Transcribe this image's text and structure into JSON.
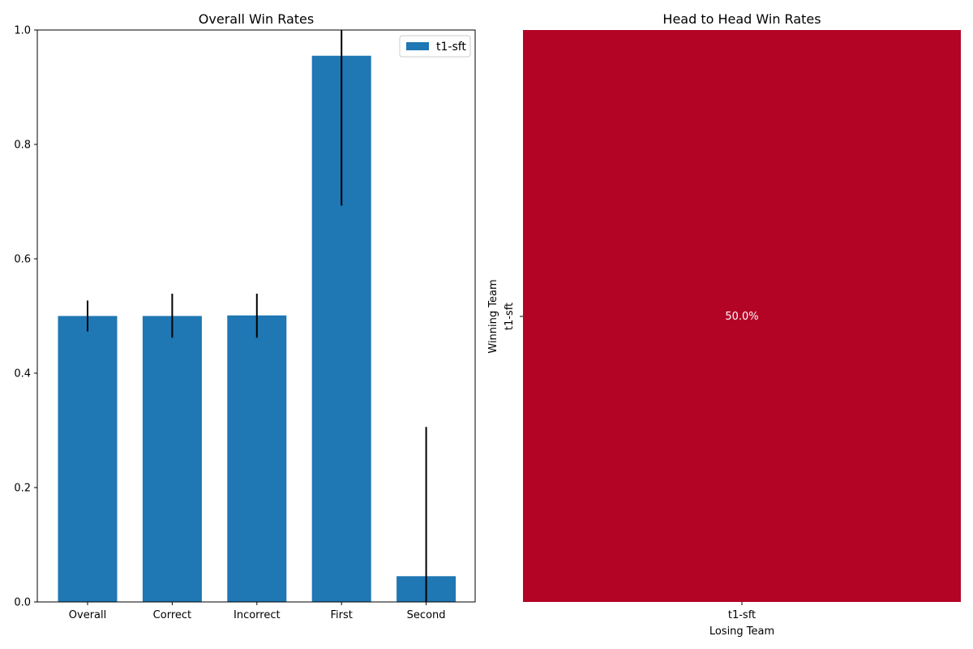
{
  "chart_data": [
    {
      "type": "bar",
      "title": "Overall Win Rates",
      "xlabel": "",
      "ylabel": "",
      "categories": [
        "Overall",
        "Correct",
        "Incorrect",
        "First",
        "Second"
      ],
      "series": [
        {
          "name": "t1-sft",
          "color": "#1f77b4",
          "values": [
            0.5,
            0.5,
            0.501,
            0.955,
            0.045
          ],
          "error_low": [
            0.473,
            0.462,
            0.462,
            0.693,
            0.0
          ],
          "error_high": [
            0.527,
            0.539,
            0.539,
            1.0,
            0.306
          ]
        }
      ],
      "ylim": [
        0,
        1.0
      ],
      "yticks": [
        "0.0",
        "0.2",
        "0.4",
        "0.6",
        "0.8",
        "1.0"
      ],
      "ytick_values": [
        0,
        0.2,
        0.4,
        0.6,
        0.8,
        1.0
      ],
      "legend": "top-right",
      "grid": false
    },
    {
      "type": "heatmap",
      "title": "Head to Head Win Rates",
      "xlabel": "Losing Team",
      "ylabel": "Winning Team",
      "x_categories": [
        "t1-sft"
      ],
      "y_categories": [
        "t1-sft"
      ],
      "values": [
        [
          0.5
        ]
      ],
      "cell_labels": [
        [
          "50.0%"
        ]
      ],
      "cell_color": "#b40426",
      "label_color": "#ffffff"
    }
  ]
}
